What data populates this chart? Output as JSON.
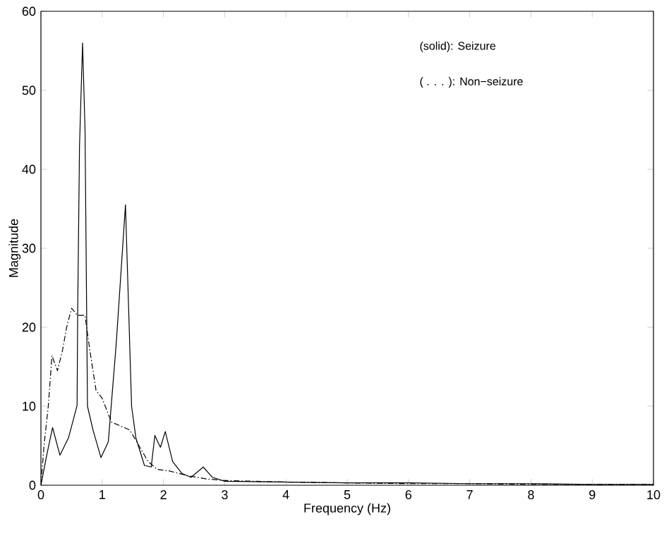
{
  "chart_data": {
    "type": "line",
    "xlabel": "Frequency (Hz)",
    "ylabel": "Magnitude",
    "x": [
      0,
      0.1,
      0.19,
      0.31,
      0.45,
      0.59,
      0.6,
      0.63,
      0.68,
      0.72,
      0.76,
      0.85,
      0.98,
      1.1,
      1.23,
      1.38,
      1.48,
      1.55,
      1.69,
      1.8,
      1.86,
      1.95,
      2.03,
      2.15,
      2.3,
      2.45,
      2.65,
      2.8,
      3.0,
      4.0,
      5.0,
      6.0,
      7.0,
      8.0,
      9.0,
      10.0
    ],
    "series": [
      {
        "color": "#000000",
        "line_style": "solid",
        "values": [
          0,
          4,
          7.3,
          3.8,
          6,
          10.1,
          22,
          43,
          56,
          45,
          10,
          7,
          3.5,
          5.5,
          18,
          35.5,
          10,
          6,
          2.5,
          2.3,
          6.3,
          4.8,
          6.8,
          3,
          1.5,
          1,
          2.3,
          1,
          0.5,
          0.4,
          0.3,
          0.3,
          0.2,
          0.2,
          0.1,
          0.1
        ]
      },
      {
        "color": "#000000",
        "line_style": "dashed",
        "x": [
          0,
          0.05,
          0.12,
          0.18,
          0.27,
          0.35,
          0.42,
          0.5,
          0.6,
          0.72,
          0.8,
          0.9,
          1.0,
          1.15,
          1.3,
          1.45,
          1.6,
          1.75,
          1.9,
          2.1,
          2.4,
          2.7,
          3.0,
          4.0,
          5.0,
          6.0,
          7.0,
          8.0,
          10.0
        ],
        "values": [
          0,
          5,
          10,
          16.4,
          14.5,
          17,
          20,
          22.4,
          21.5,
          21.5,
          17,
          12,
          11,
          8,
          7.5,
          7,
          5,
          3,
          2,
          1.8,
          1.2,
          0.8,
          0.6,
          0.4,
          0.3,
          0.2,
          0.2,
          0.1,
          0.1
        ]
      }
    ],
    "xlim": [
      0,
      10
    ],
    "ylim": [
      0,
      60
    ],
    "xticks": [
      0,
      1,
      2,
      3,
      4,
      5,
      6,
      7,
      8,
      9,
      10
    ],
    "yticks": [
      0,
      10,
      20,
      30,
      40,
      50,
      60
    ],
    "annotations": [
      "(solid): Seizure",
      "( . . . ): Non−seizure"
    ],
    "grid": false
  }
}
